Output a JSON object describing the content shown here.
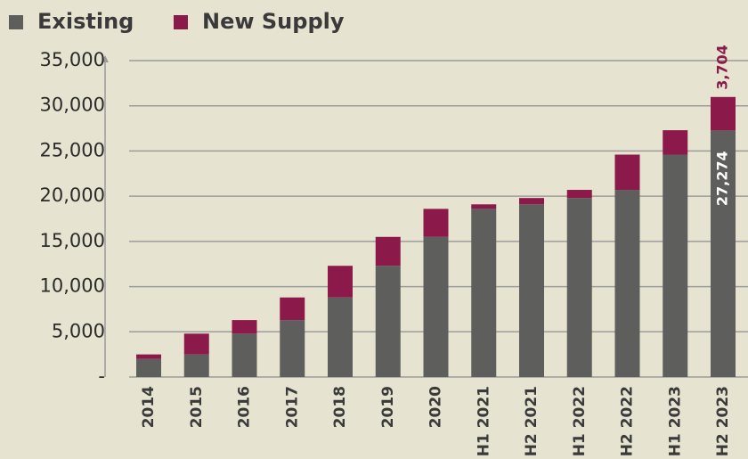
{
  "chart_data": {
    "type": "stacked_bar",
    "categories": [
      "2014",
      "2015",
      "2016",
      "2017",
      "2018",
      "2019",
      "2020",
      "H1 2021",
      "H2 2021",
      "H1 2022",
      "H2 2022",
      "H1 2023",
      "H2 2023"
    ],
    "series": [
      {
        "name": "Existing",
        "color": "#5e5e5c",
        "values": [
          2000,
          2500,
          4800,
          6300,
          8800,
          12300,
          15500,
          18600,
          19100,
          19800,
          20700,
          24600,
          27274
        ],
        "value_labels": [
          null,
          null,
          null,
          null,
          null,
          null,
          null,
          null,
          null,
          null,
          null,
          null,
          "27,274"
        ]
      },
      {
        "name": "New Supply",
        "color": "#8b1a4a",
        "values": [
          500,
          2300,
          1500,
          2500,
          3500,
          3200,
          3100,
          500,
          700,
          900,
          3900,
          2700,
          3704
        ],
        "value_labels": [
          null,
          null,
          null,
          null,
          null,
          null,
          null,
          null,
          null,
          null,
          null,
          null,
          "3,704"
        ]
      }
    ],
    "ylim": [
      0,
      35000
    ],
    "yticks": [
      {
        "value": 0,
        "label": "-"
      },
      {
        "value": 5000,
        "label": "5,000"
      },
      {
        "value": 10000,
        "label": "10,000"
      },
      {
        "value": 15000,
        "label": "15,000"
      },
      {
        "value": 20000,
        "label": "20,000"
      },
      {
        "value": 25000,
        "label": "25,000"
      },
      {
        "value": 30000,
        "label": "30,000"
      },
      {
        "value": 35000,
        "label": "35,000"
      }
    ],
    "grid": true,
    "legend": "top-left"
  }
}
